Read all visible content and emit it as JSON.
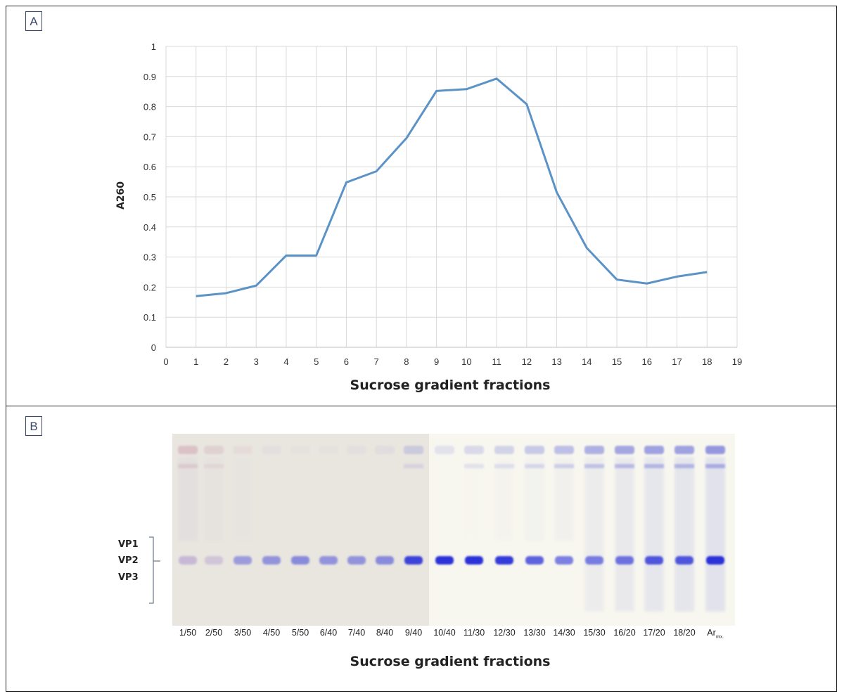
{
  "panels": {
    "a_label": "A",
    "b_label": "B"
  },
  "chart_data": {
    "type": "line",
    "title": "",
    "xlabel": "Sucrose gradient fractions",
    "ylabel": "A260",
    "xlim": [
      0,
      19
    ],
    "ylim": [
      0,
      1
    ],
    "xticks": [
      "0",
      "1",
      "2",
      "3",
      "4",
      "5",
      "6",
      "7",
      "8",
      "9",
      "10",
      "11",
      "12",
      "13",
      "14",
      "15",
      "16",
      "17",
      "18",
      "19"
    ],
    "yticks": [
      "0",
      "0.1",
      "0.2",
      "0.3",
      "0.4",
      "0.5",
      "0.6",
      "0.7",
      "0.8",
      "0.9",
      "1"
    ],
    "grid": true,
    "series": [
      {
        "color": "#5b93c7",
        "x": [
          1,
          2,
          3,
          4,
          5,
          6,
          7,
          8,
          9,
          10,
          11,
          12,
          13,
          14,
          15,
          16,
          17,
          18
        ],
        "y": [
          0.17,
          0.18,
          0.205,
          0.305,
          0.305,
          0.548,
          0.585,
          0.695,
          0.852,
          0.858,
          0.893,
          0.808,
          0.515,
          0.33,
          0.225,
          0.212,
          0.235,
          0.25
        ]
      }
    ]
  },
  "gel": {
    "xlabel": "Sucrose gradient fractions",
    "band_labels": [
      "VP1",
      "VP2",
      "VP3"
    ],
    "lanes": [
      "1/50",
      "2/50",
      "3/50",
      "4/50",
      "5/50",
      "6/40",
      "7/40",
      "8/40",
      "9/40",
      "10/40",
      "11/30",
      "12/30",
      "13/30",
      "14/30",
      "15/30",
      "16/20",
      "17/20",
      "18/20",
      "Ar"
    ],
    "last_lane_subscript": "mix."
  }
}
